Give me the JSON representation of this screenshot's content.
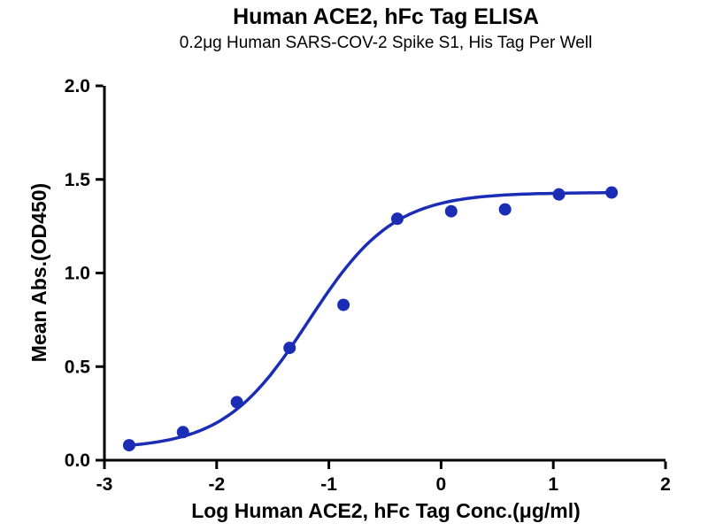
{
  "chart_data": {
    "type": "scatter",
    "title": "Human ACE2, hFc Tag ELISA",
    "subtitle": "0.2μg Human SARS-COV-2 Spike S1, His Tag Per Well",
    "xlabel": "Log Human ACE2, hFc Tag Conc.(μg/ml)",
    "ylabel": "Mean Abs.(OD450)",
    "xlim": [
      -3,
      2
    ],
    "ylim": [
      0,
      2
    ],
    "xticks": [
      -3,
      -2,
      -1,
      0,
      1,
      2
    ],
    "yticks": [
      0,
      0.5,
      1.0,
      1.5,
      2.0
    ],
    "ytick_labels": [
      "0.0",
      "0.5",
      "1.0",
      "1.5",
      "2.0"
    ],
    "grid": false,
    "legend_position": "none",
    "series": [
      {
        "name": "Human ACE2, hFc Tag",
        "color": "#1b2cb5",
        "x": [
          -2.78,
          -2.3,
          -1.82,
          -1.35,
          -0.87,
          -0.39,
          0.09,
          0.57,
          1.05,
          1.52
        ],
        "y": [
          0.08,
          0.15,
          0.31,
          0.6,
          0.83,
          1.29,
          1.33,
          1.34,
          1.42,
          1.43
        ]
      }
    ],
    "fit_curve": {
      "model": "4PL",
      "bottom": 0.06,
      "top": 1.43,
      "log_ec50": -1.18,
      "hill": 1.15,
      "x_start": -2.8,
      "x_end": 1.52
    },
    "colors": {
      "axis": "#000000",
      "curve": "#1b2cb5",
      "background": "#ffffff"
    }
  }
}
